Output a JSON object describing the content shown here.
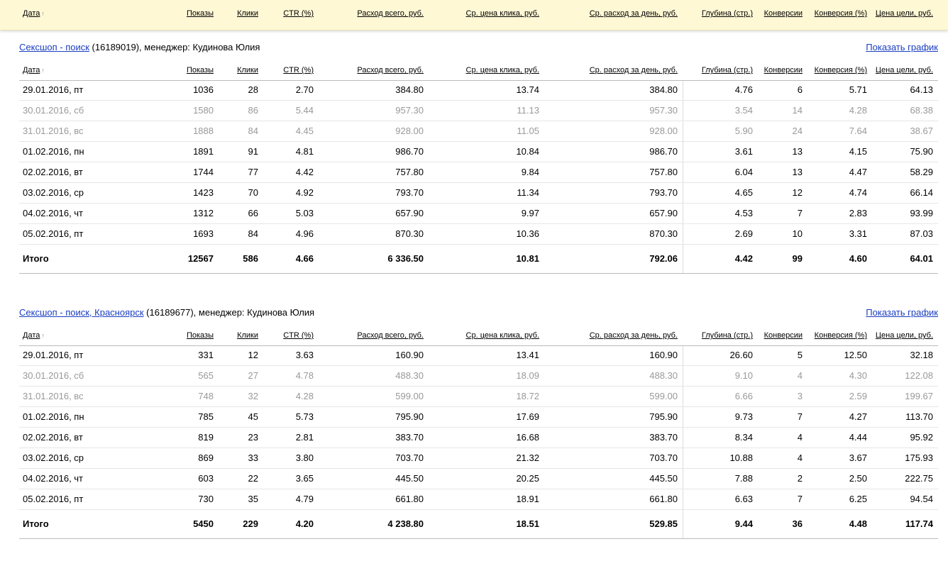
{
  "columns": [
    "Дата",
    "Показы",
    "Клики",
    "CTR (%)",
    "Расход всего, руб.",
    "Ср. цена клика, руб.",
    "Ср. расход за день, руб.",
    "Глубина (стр.)",
    "Конверсии",
    "Конверсия (%)",
    "Цена цели, руб."
  ],
  "tables": [
    {
      "campaign": "Сексшоп - поиск",
      "id": "(16189019)",
      "manager": ", менеджер: Кудинова Юлия",
      "show_chart": "Показать график",
      "muted_rows": [
        1,
        2
      ],
      "rows": [
        [
          "29.01.2016, пт",
          "1036",
          "28",
          "2.70",
          "384.80",
          "13.74",
          "384.80",
          "4.76",
          "6",
          "5.71",
          "64.13"
        ],
        [
          "30.01.2016, сб",
          "1580",
          "86",
          "5.44",
          "957.30",
          "11.13",
          "957.30",
          "3.54",
          "14",
          "4.28",
          "68.38"
        ],
        [
          "31.01.2016, вс",
          "1888",
          "84",
          "4.45",
          "928.00",
          "11.05",
          "928.00",
          "5.90",
          "24",
          "7.64",
          "38.67"
        ],
        [
          "01.02.2016, пн",
          "1891",
          "91",
          "4.81",
          "986.70",
          "10.84",
          "986.70",
          "3.61",
          "13",
          "4.15",
          "75.90"
        ],
        [
          "02.02.2016, вт",
          "1744",
          "77",
          "4.42",
          "757.80",
          "9.84",
          "757.80",
          "6.04",
          "13",
          "4.47",
          "58.29"
        ],
        [
          "03.02.2016, ср",
          "1423",
          "70",
          "4.92",
          "793.70",
          "11.34",
          "793.70",
          "4.65",
          "12",
          "4.74",
          "66.14"
        ],
        [
          "04.02.2016, чт",
          "1312",
          "66",
          "5.03",
          "657.90",
          "9.97",
          "657.90",
          "4.53",
          "7",
          "2.83",
          "93.99"
        ],
        [
          "05.02.2016, пт",
          "1693",
          "84",
          "4.96",
          "870.30",
          "10.36",
          "870.30",
          "2.69",
          "10",
          "3.31",
          "87.03"
        ]
      ],
      "total": [
        "Итого",
        "12567",
        "586",
        "4.66",
        "6 336.50",
        "10.81",
        "792.06",
        "4.42",
        "99",
        "4.60",
        "64.01"
      ]
    },
    {
      "campaign": "Сексшоп - поиск, Красноярск",
      "id": "(16189677)",
      "manager": ", менеджер: Кудинова Юлия",
      "show_chart": "Показать график",
      "muted_rows": [
        1,
        2
      ],
      "rows": [
        [
          "29.01.2016, пт",
          "331",
          "12",
          "3.63",
          "160.90",
          "13.41",
          "160.90",
          "26.60",
          "5",
          "12.50",
          "32.18"
        ],
        [
          "30.01.2016, сб",
          "565",
          "27",
          "4.78",
          "488.30",
          "18.09",
          "488.30",
          "9.10",
          "4",
          "4.30",
          "122.08"
        ],
        [
          "31.01.2016, вс",
          "748",
          "32",
          "4.28",
          "599.00",
          "18.72",
          "599.00",
          "6.66",
          "3",
          "2.59",
          "199.67"
        ],
        [
          "01.02.2016, пн",
          "785",
          "45",
          "5.73",
          "795.90",
          "17.69",
          "795.90",
          "9.73",
          "7",
          "4.27",
          "113.70"
        ],
        [
          "02.02.2016, вт",
          "819",
          "23",
          "2.81",
          "383.70",
          "16.68",
          "383.70",
          "8.34",
          "4",
          "4.44",
          "95.92"
        ],
        [
          "03.02.2016, ср",
          "869",
          "33",
          "3.80",
          "703.70",
          "21.32",
          "703.70",
          "10.88",
          "4",
          "3.67",
          "175.93"
        ],
        [
          "04.02.2016, чт",
          "603",
          "22",
          "3.65",
          "445.50",
          "20.25",
          "445.50",
          "7.88",
          "2",
          "2.50",
          "222.75"
        ],
        [
          "05.02.2016, пт",
          "730",
          "35",
          "4.79",
          "661.80",
          "18.91",
          "661.80",
          "6.63",
          "7",
          "6.25",
          "94.54"
        ]
      ],
      "total": [
        "Итого",
        "5450",
        "229",
        "4.20",
        "4 238.80",
        "18.51",
        "529.85",
        "9.44",
        "36",
        "4.48",
        "117.74"
      ]
    }
  ]
}
